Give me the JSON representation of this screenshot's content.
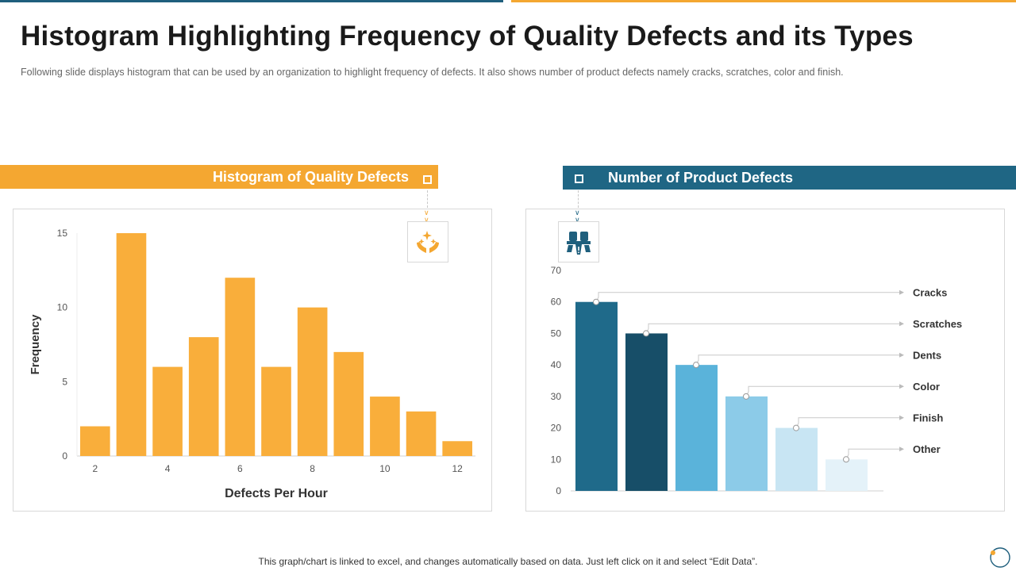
{
  "title": "Histogram Highlighting Frequency of Quality Defects and its Types",
  "subtitle": "Following slide displays histogram that can be used by an organization to highlight frequency of defects. It also shows number of product defects namely cracks, scratches, color and finish.",
  "left_header": "Histogram of Quality Defects",
  "right_header": "Number of Product Defects",
  "footer": "This graph/chart is linked to excel, and changes automatically based on data. Just left click on it and select “Edit Data”.",
  "colors": {
    "orange": "#f4a731",
    "blue_dark": "#1f5f7d"
  },
  "icons": {
    "left": "hands-sparkle-icon",
    "right": "factory-warning-icon"
  },
  "chart_data": [
    {
      "type": "bar",
      "title": "Histogram of Quality Defects",
      "xlabel": "Defects Per Hour",
      "ylabel": "Frequency",
      "x": [
        2,
        3,
        4,
        5,
        6,
        7,
        8,
        9,
        10,
        11,
        12
      ],
      "values": [
        2,
        15,
        6,
        8,
        12,
        6,
        10,
        7,
        4,
        3,
        1
      ],
      "xticks": [
        "2",
        "4",
        "6",
        "8",
        "10",
        "12"
      ],
      "yticks": [
        "0",
        "5",
        "10",
        "15"
      ],
      "ylim": [
        0,
        15
      ],
      "color": "#f9ae3b"
    },
    {
      "type": "bar",
      "title": "Number of Product Defects",
      "categories": [
        "Cracks",
        "Scratches",
        "Dents",
        "Color",
        "Finish",
        "Other"
      ],
      "values": [
        60,
        50,
        40,
        30,
        20,
        10
      ],
      "colors": [
        "#1f6a8a",
        "#174e68",
        "#5ab3da",
        "#8ccbe8",
        "#c8e5f3",
        "#e4f2f9"
      ],
      "yticks": [
        "0",
        "10",
        "20",
        "30",
        "40",
        "50",
        "60",
        "70"
      ],
      "ylim": [
        0,
        70
      ]
    }
  ]
}
